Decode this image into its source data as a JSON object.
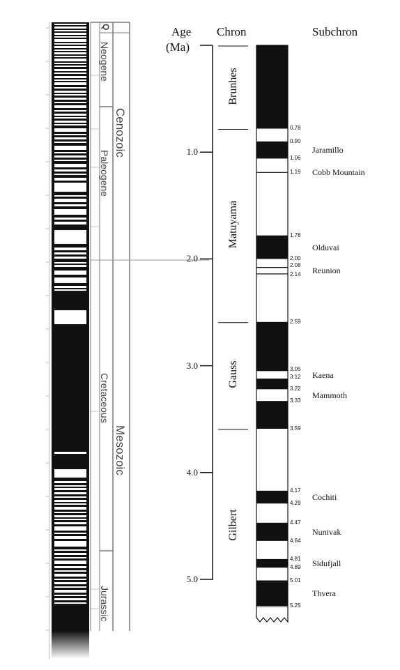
{
  "headers": {
    "age": "Age",
    "age_unit": "(Ma)",
    "chron": "Chron",
    "subchron": "Subchron"
  },
  "age_ticks": [
    "1.0",
    "2.0",
    "3.0",
    "4.0",
    "5.0"
  ],
  "age_tick_values": [
    1.0,
    2.0,
    3.0,
    4.0,
    5.0
  ],
  "chrons": [
    {
      "name": "Brunhes",
      "start": 0.0,
      "end": 0.78
    },
    {
      "name": "Matuyama",
      "start": 0.78,
      "end": 2.59
    },
    {
      "name": "Gauss",
      "start": 2.59,
      "end": 3.59
    },
    {
      "name": "Gilbert",
      "start": 3.59,
      "end": 5.25
    }
  ],
  "normal_intervals": [
    [
      0.0,
      0.78
    ],
    [
      0.9,
      1.06
    ],
    [
      1.78,
      2.0
    ],
    [
      2.59,
      3.05
    ],
    [
      3.12,
      3.22
    ],
    [
      3.33,
      3.59
    ],
    [
      4.17,
      4.29
    ],
    [
      4.47,
      4.64
    ],
    [
      4.81,
      4.89
    ],
    [
      5.01,
      5.25
    ]
  ],
  "thin_normal_events": [
    1.19,
    2.08,
    2.14
  ],
  "boundary_labels": [
    "0.78",
    "0.90",
    "1.06",
    "1.19",
    "1.78",
    "2.00",
    "2.08",
    "2.14",
    "2.59",
    "3.05",
    "3.12",
    "3.22",
    "3.33",
    "3.59",
    "4.17",
    "4.29",
    "4.47",
    "4.64",
    "4.81",
    "4.89",
    "5.01",
    "5.25"
  ],
  "boundary_values": [
    0.78,
    0.9,
    1.06,
    1.19,
    1.78,
    2.0,
    2.08,
    2.14,
    2.59,
    3.05,
    3.12,
    3.22,
    3.33,
    3.59,
    4.17,
    4.29,
    4.47,
    4.64,
    4.81,
    4.89,
    5.01,
    5.25
  ],
  "subchrons": [
    {
      "name": "Jaramillo",
      "age": 0.98
    },
    {
      "name": "Cobb Mountain",
      "age": 1.19
    },
    {
      "name": "Olduvai",
      "age": 1.89
    },
    {
      "name": "Reunion",
      "age": 2.11
    },
    {
      "name": "Kaena",
      "age": 3.085
    },
    {
      "name": "Mammoth",
      "age": 3.275
    },
    {
      "name": "Cochiti",
      "age": 4.23
    },
    {
      "name": "Nunivak",
      "age": 4.555
    },
    {
      "name": "Sidufjall",
      "age": 4.85
    },
    {
      "name": "Thvera",
      "age": 5.13
    }
  ],
  "left_column": {
    "units": {
      "q": "Q",
      "neogene": "Neogene",
      "paleogene": "Paleogene",
      "cretaceous": "Cretaceous",
      "jurassic": "Jurassic",
      "cenozoic": "Cenozoic",
      "mesozoic": "Mesozoic"
    }
  }
}
